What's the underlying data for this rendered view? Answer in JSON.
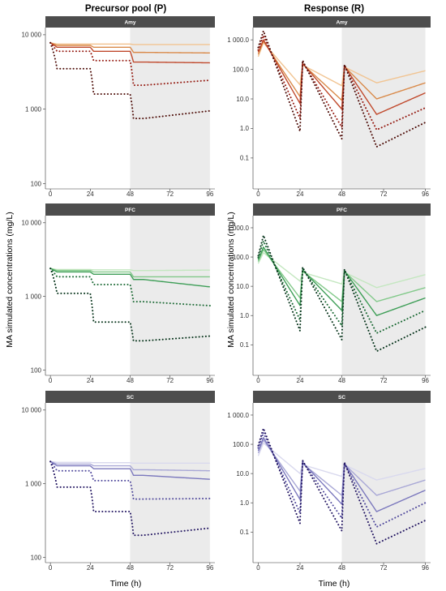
{
  "figure": {
    "ylabel": "MA simulated concentrations (mg/L)",
    "xlabel": "Time (h)"
  },
  "colors": {
    "strip_bg": "#4d4d4d",
    "shade": "#ebebeb",
    "amy": [
      "#f1c492",
      "#d98a4a",
      "#c0492c",
      "#961d14",
      "#4d0c07"
    ],
    "pfc": [
      "#c4e7c0",
      "#82c98a",
      "#3e9e57",
      "#1c6a35",
      "#06331a"
    ],
    "sc": [
      "#d9d9ee",
      "#a9a8d6",
      "#7b78bd",
      "#524b9d",
      "#221561"
    ]
  },
  "chart_data": [
    {
      "type": "line",
      "column_title": "Precursor pool (P)",
      "panel": "Amy",
      "palette": "amy",
      "scale": "log",
      "ylim": [
        85,
        12500
      ],
      "yticks": [
        100,
        1000,
        10000
      ],
      "yticklabels": [
        "100",
        "1 000",
        "10 000"
      ],
      "xlim": [
        -3,
        99
      ],
      "xticks": [
        0,
        24,
        48,
        72,
        96
      ],
      "xticklabels": [
        "0",
        "24",
        "48",
        "72",
        "96"
      ],
      "shaded_x": [
        48,
        96
      ],
      "series_style": [
        "solid",
        "solid",
        "solid",
        "dotted",
        "dotted"
      ],
      "start": 7800,
      "drop_levels": [
        [
          7500,
          7500,
          7400
        ],
        [
          7200,
          6800,
          5800
        ],
        [
          6800,
          6000,
          4300
        ],
        [
          6000,
          4500,
          2100
        ],
        [
          3500,
          1600,
          750
        ]
      ],
      "recovery_end": [
        7400,
        5700,
        4200,
        2450,
        950
      ]
    },
    {
      "type": "line",
      "column_title": "Response (R)",
      "panel": "Amy",
      "palette": "amy",
      "scale": "log",
      "ylim": [
        0.009,
        2600
      ],
      "yticks": [
        0.1,
        1,
        10,
        100,
        1000
      ],
      "yticklabels": [
        "0.1",
        "1.0",
        "10.0",
        "100.0",
        "1 000.0"
      ],
      "xlim": [
        -3,
        99
      ],
      "xticks": [
        0,
        24,
        48,
        72,
        96
      ],
      "xticklabels": [
        "0",
        "24",
        "48",
        "72",
        "96"
      ],
      "shaded_x": [
        48,
        96
      ],
      "series_style": [
        "solid",
        "solid",
        "solid",
        "dotted",
        "dotted"
      ],
      "start": [
        270,
        320,
        380,
        450,
        550
      ],
      "peaks": [
        [
          800,
          140,
          120
        ],
        [
          900,
          150,
          125
        ],
        [
          1000,
          160,
          130
        ],
        [
          1400,
          180,
          140
        ],
        [
          2000,
          200,
          145
        ]
      ],
      "troughs": [
        [
          30,
          28
        ],
        [
          12,
          9
        ],
        [
          7,
          4.5
        ],
        [
          2.2,
          1.1
        ],
        [
          0.8,
          0.45
        ]
      ],
      "minima": [
        35,
        10,
        3,
        0.9,
        0.24
      ],
      "ends": [
        90,
        35,
        16,
        5,
        1.6
      ]
    },
    {
      "type": "line",
      "column_title": "Precursor pool (P)",
      "panel": "PFC",
      "palette": "pfc",
      "scale": "log",
      "ylim": [
        85,
        12500
      ],
      "yticks": [
        100,
        1000,
        10000
      ],
      "yticklabels": [
        "100",
        "1 000",
        "10 000"
      ],
      "xlim": [
        -3,
        99
      ],
      "xticks": [
        0,
        24,
        48,
        72,
        96
      ],
      "xticklabels": [
        "0",
        "24",
        "48",
        "72",
        "96"
      ],
      "shaded_x": [
        48,
        96
      ],
      "series_style": [
        "solid",
        "solid",
        "solid",
        "dotted",
        "dotted"
      ],
      "start": 2400,
      "drop_levels": [
        [
          2320,
          2300,
          2250
        ],
        [
          2250,
          2150,
          1850
        ],
        [
          2150,
          2000,
          1700
        ],
        [
          1850,
          1450,
          850
        ],
        [
          1100,
          450,
          250
        ]
      ],
      "recovery_end": [
        2280,
        1850,
        1350,
        750,
        290
      ]
    },
    {
      "type": "line",
      "column_title": "Response (R)",
      "panel": "PFC",
      "palette": "pfc",
      "scale": "log",
      "ylim": [
        0.009,
        2600
      ],
      "yticks": [
        0.1,
        1,
        10,
        100,
        1000
      ],
      "yticklabels": [
        "0.1",
        "1.0",
        "10.0",
        "100.0",
        "1 000.0"
      ],
      "xlim": [
        -3,
        99
      ],
      "xticks": [
        0,
        24,
        48,
        72,
        96
      ],
      "xticklabels": [
        "0",
        "24",
        "48",
        "72",
        "96"
      ],
      "shaded_x": [
        48,
        96
      ],
      "series_style": [
        "solid",
        "solid",
        "solid",
        "dotted",
        "dotted"
      ],
      "start": [
        60,
        70,
        80,
        95,
        110
      ],
      "peaks": [
        [
          140,
          30,
          30
        ],
        [
          180,
          33,
          32
        ],
        [
          220,
          36,
          34
        ],
        [
          350,
          40,
          36
        ],
        [
          550,
          45,
          38
        ]
      ],
      "troughs": [
        [
          15,
          12
        ],
        [
          4,
          3
        ],
        [
          2.2,
          1.5
        ],
        [
          0.7,
          0.45
        ],
        [
          0.3,
          0.15
        ]
      ],
      "minima": [
        9,
        3,
        1,
        0.25,
        0.06
      ],
      "ends": [
        25,
        9,
        4,
        1.5,
        0.4
      ]
    },
    {
      "type": "line",
      "column_title": "Precursor pool (P)",
      "panel": "SC",
      "palette": "sc",
      "scale": "log",
      "ylim": [
        85,
        12500
      ],
      "yticks": [
        100,
        1000,
        10000
      ],
      "yticklabels": [
        "100",
        "1 000",
        "10 000"
      ],
      "xlim": [
        -3,
        99
      ],
      "xticks": [
        0,
        24,
        48,
        72,
        96
      ],
      "xticklabels": [
        "0",
        "24",
        "48",
        "72",
        "96"
      ],
      "shaded_x": [
        48,
        96
      ],
      "series_style": [
        "solid",
        "solid",
        "solid",
        "dotted",
        "dotted"
      ],
      "start": 2000,
      "drop_levels": [
        [
          1950,
          1930,
          1900
        ],
        [
          1850,
          1750,
          1550
        ],
        [
          1750,
          1600,
          1300
        ],
        [
          1500,
          1100,
          620
        ],
        [
          900,
          420,
          200
        ]
      ],
      "recovery_end": [
        1900,
        1500,
        1150,
        630,
        250
      ]
    },
    {
      "type": "line",
      "column_title": "Response (R)",
      "panel": "SC",
      "palette": "sc",
      "scale": "log",
      "ylim": [
        0.009,
        2600
      ],
      "yticks": [
        0.1,
        1,
        10,
        100,
        1000
      ],
      "yticklabels": [
        "0.1",
        "1.0",
        "10.0",
        "100.0",
        "1 000.0"
      ],
      "xlim": [
        -3,
        99
      ],
      "xticks": [
        0,
        24,
        48,
        72,
        96
      ],
      "xticklabels": [
        "0",
        "24",
        "48",
        "72",
        "96"
      ],
      "shaded_x": [
        48,
        96
      ],
      "series_style": [
        "solid",
        "solid",
        "solid",
        "dotted",
        "dotted"
      ],
      "start": [
        40,
        50,
        60,
        75,
        90
      ],
      "peaks": [
        [
          110,
          20,
          20
        ],
        [
          140,
          22,
          21
        ],
        [
          170,
          24,
          22
        ],
        [
          250,
          26,
          23
        ],
        [
          350,
          28,
          24
        ]
      ],
      "troughs": [
        [
          10,
          8
        ],
        [
          2.5,
          1.8
        ],
        [
          1.3,
          0.9
        ],
        [
          0.45,
          0.3
        ],
        [
          0.2,
          0.11
        ]
      ],
      "minima": [
        6,
        1.8,
        0.5,
        0.15,
        0.04
      ],
      "ends": [
        15,
        6,
        2.7,
        1,
        0.25
      ]
    }
  ]
}
